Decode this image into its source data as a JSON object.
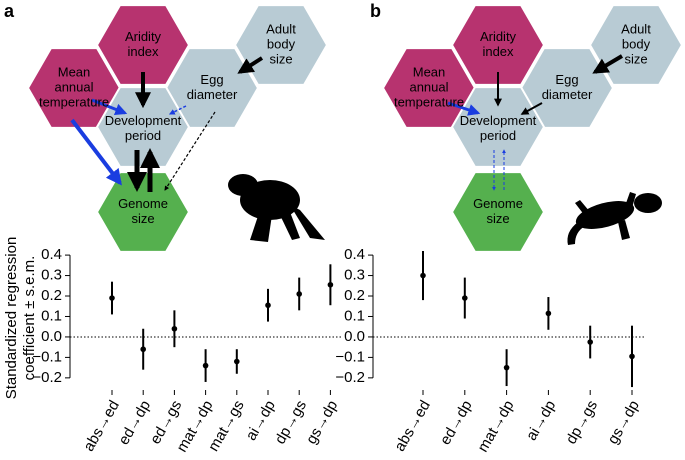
{
  "panel_labels": [
    "a",
    "b"
  ],
  "diagrams": [
    {
      "nodes": [
        {
          "label": [
            "Aridity",
            "index"
          ],
          "color": "#b7336f"
        },
        {
          "label": [
            "Adult",
            "body",
            "size"
          ],
          "color": "#b8cbd4"
        },
        {
          "label": [
            "Mean",
            "annual",
            "temperature"
          ],
          "color": "#b7336f"
        },
        {
          "label": [
            "Egg",
            "diameter"
          ],
          "color": "#b8cbd4"
        },
        {
          "label": [
            "Development",
            "period"
          ],
          "color": "#b8cbd4"
        },
        {
          "label": [
            "Genome",
            "size"
          ],
          "color": "#55b04e"
        }
      ]
    },
    {
      "nodes": [
        {
          "label": [
            "Aridity",
            "index"
          ],
          "color": "#b7336f"
        },
        {
          "label": [
            "Adult",
            "body",
            "size"
          ],
          "color": "#b8cbd4"
        },
        {
          "label": [
            "Mean",
            "annual",
            "temperature"
          ],
          "color": "#b7336f"
        },
        {
          "label": [
            "Egg",
            "diameter"
          ],
          "color": "#b8cbd4"
        },
        {
          "label": [
            "Development",
            "period"
          ],
          "color": "#b8cbd4"
        },
        {
          "label": [
            "Genome",
            "size"
          ],
          "color": "#55b04e"
        }
      ]
    }
  ],
  "chart_data": [
    {
      "type": "errorbar",
      "ylabel": [
        "Standardized regression",
        "coefficient ± s.e.m."
      ],
      "categories": [
        "abs→ed",
        "ed→dp",
        "ed→gs",
        "mat→dp",
        "mat→gs",
        "ai→dp",
        "dp→gs",
        "gs→dp"
      ],
      "values": [
        0.19,
        -0.06,
        0.04,
        -0.14,
        -0.12,
        0.155,
        0.21,
        0.255
      ],
      "errors": [
        0.08,
        0.1,
        0.09,
        0.08,
        0.06,
        0.08,
        0.08,
        0.1
      ],
      "color": "#000000",
      "reference_line": 0,
      "ylim": [
        -0.23,
        0.42
      ],
      "yticks": [
        0.4,
        0.3,
        0.2,
        0.1,
        {
          "value": 0,
          "label": "0.0"
        },
        {
          "value": -0.1,
          "label": "−0.1"
        },
        {
          "value": -0.2,
          "label": "−0.2"
        }
      ]
    },
    {
      "type": "errorbar",
      "categories": [
        "abs→ed",
        "ed→dp",
        "mat→dp",
        "ai→dp",
        "dp→gs",
        "gs→dp"
      ],
      "values": [
        0.3,
        0.19,
        -0.15,
        0.115,
        -0.025,
        -0.095
      ],
      "errors": [
        0.12,
        0.1,
        0.09,
        0.08,
        0.08,
        0.15
      ],
      "color": "#000000",
      "reference_line": 0,
      "ylim": [
        -0.23,
        0.42
      ],
      "yticks": [
        0.4,
        0.3,
        0.2,
        0.1,
        {
          "value": 0,
          "label": "0.0"
        },
        {
          "value": -0.1,
          "label": "−0.1"
        },
        {
          "value": -0.2,
          "label": "−0.2"
        }
      ]
    }
  ]
}
